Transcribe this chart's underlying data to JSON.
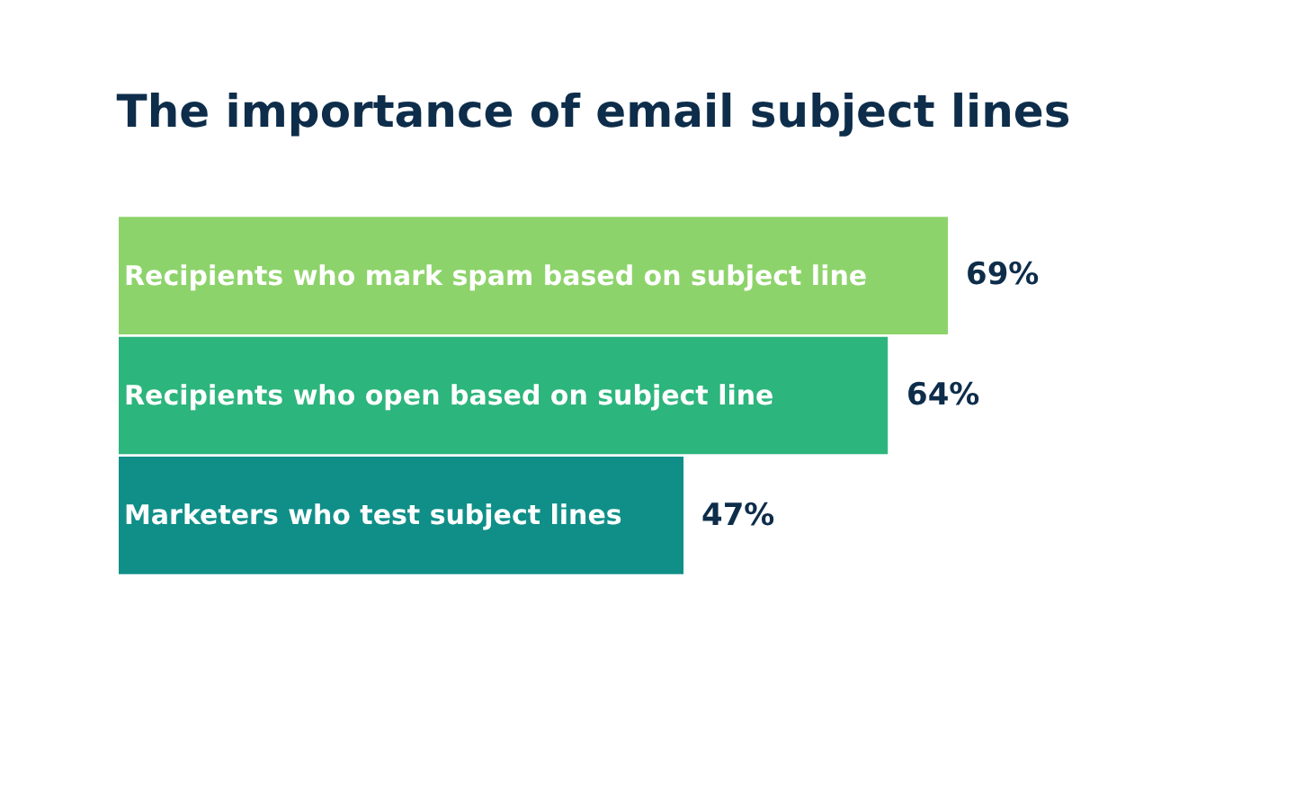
{
  "chart_data": {
    "type": "bar",
    "orientation": "horizontal",
    "title": "The importance of email subject lines",
    "categories": [
      "Recipients who mark spam based on subject line",
      "Recipients who open based on subject line",
      "Marketers who test subject lines"
    ],
    "values": [
      69,
      64,
      47
    ],
    "colors": [
      "#8dd36b",
      "#2cb57c",
      "#0f8f88"
    ],
    "value_labels": [
      "69%",
      "64%",
      "47%"
    ],
    "legend": false,
    "tick_labels": false
  }
}
